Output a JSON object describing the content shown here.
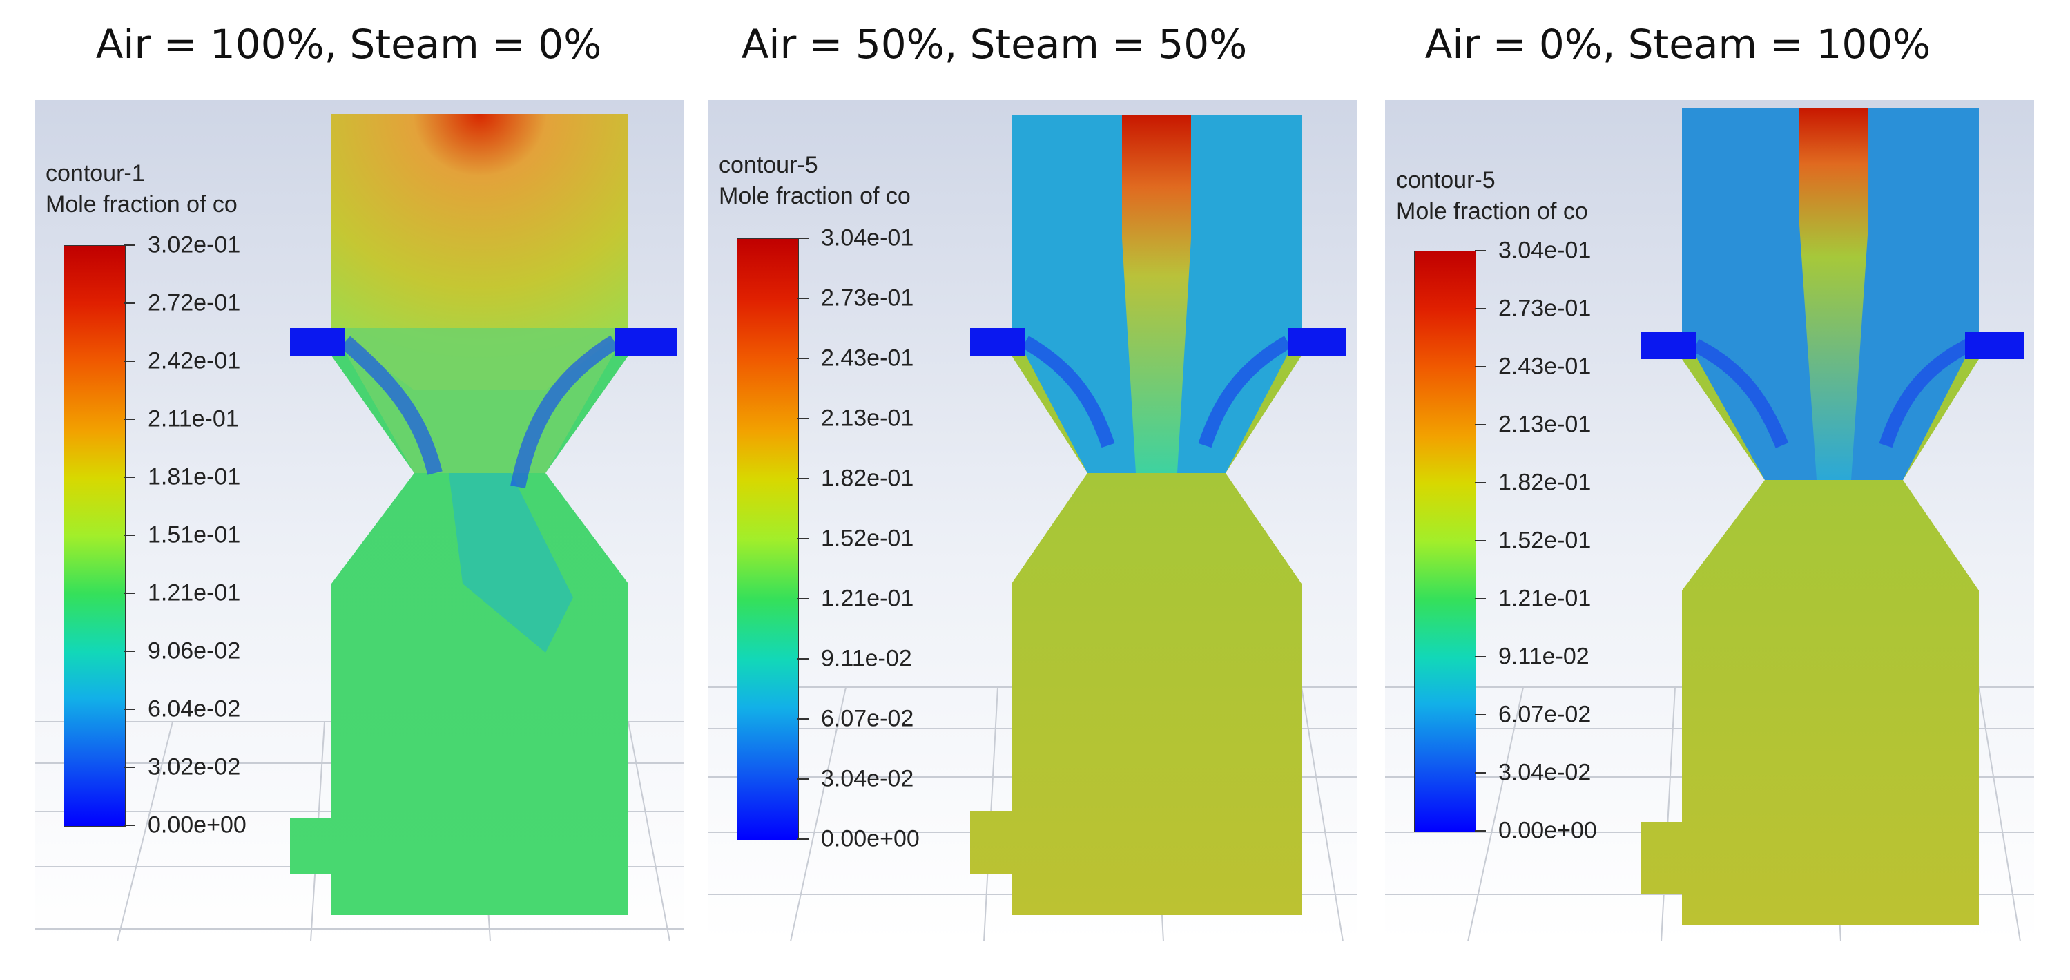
{
  "panels": [
    {
      "title": "Air = 100%, Steam = 0%",
      "legend_name": "contour-1",
      "legend_quantity": "Mole fraction of co",
      "ticks": [
        "3.02e-01",
        "2.72e-01",
        "2.42e-01",
        "2.11e-01",
        "1.81e-01",
        "1.51e-01",
        "1.21e-01",
        "9.06e-02",
        "6.04e-02",
        "3.02e-02",
        "0.00e+00"
      ]
    },
    {
      "title": "Air = 50%, Steam = 50%",
      "legend_name": "contour-5",
      "legend_quantity": "Mole fraction of co",
      "ticks": [
        "3.04e-01",
        "2.73e-01",
        "2.43e-01",
        "2.13e-01",
        "1.82e-01",
        "1.52e-01",
        "1.21e-01",
        "9.11e-02",
        "6.07e-02",
        "3.04e-02",
        "0.00e+00"
      ]
    },
    {
      "title": "Air = 0%, Steam = 100%",
      "legend_name": "contour-5",
      "legend_quantity": "Mole fraction of co",
      "ticks": [
        "3.04e-01",
        "2.73e-01",
        "2.43e-01",
        "2.13e-01",
        "1.82e-01",
        "1.52e-01",
        "1.21e-01",
        "9.11e-02",
        "6.07e-02",
        "3.04e-02",
        "0.00e+00"
      ]
    }
  ],
  "colors": {
    "colormap_top": "#c00000",
    "colormap_mid": "#a2ee2a",
    "colormap_bottom": "#0000ff"
  }
}
